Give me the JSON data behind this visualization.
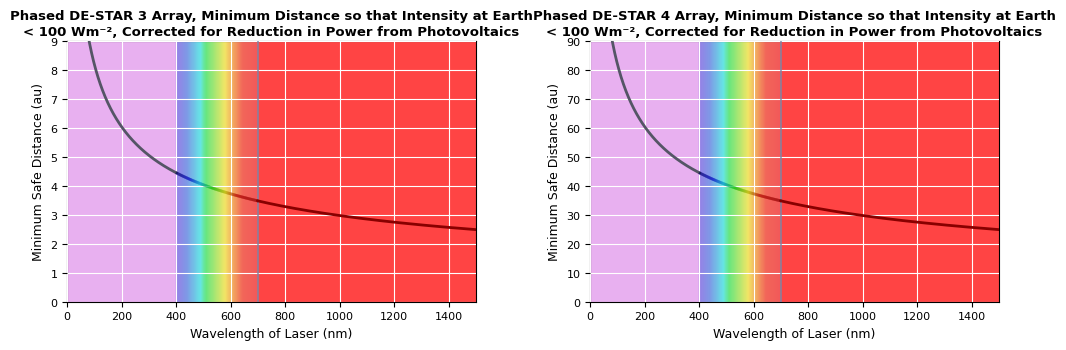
{
  "title1": "Phased DE-STAR 3 Array, Minimum Distance so that Intensity at Earth\n< 100 Wm⁻², Corrected for Reduction in Power from Photovoltaics",
  "title2": "Phased DE-STAR 4 Array, Minimum Distance so that Intensity at Earth\n< 100 Wm⁻², Corrected for Reduction in Power from Photovoltaics",
  "xlabel": "Wavelength of Laser (nm)",
  "ylabel": "Minimum Safe Distance (au)",
  "xlim": [
    0,
    1500
  ],
  "ylim1": [
    0,
    9
  ],
  "ylim2": [
    0,
    90
  ],
  "yticks1": [
    0,
    1,
    2,
    3,
    4,
    5,
    6,
    7,
    8,
    9
  ],
  "yticks2": [
    0,
    10,
    20,
    30,
    40,
    50,
    60,
    70,
    80,
    90
  ],
  "xticks": [
    0,
    200,
    400,
    600,
    800,
    1000,
    1200,
    1400
  ],
  "vline_x": 700,
  "vline_color": "#7788aa",
  "bg_uv_color": "#e8b0f0",
  "bg_ir_color": "#ff4444",
  "rainbow_start": 400,
  "rainbow_end": 700,
  "grid_color": "#ffffff",
  "title_fontsize": 9.5,
  "axis_fontsize": 9,
  "tick_fontsize": 8,
  "curve_alpha": 0.44,
  "curve_C3": 62.1,
  "curve_C4": 621.0
}
